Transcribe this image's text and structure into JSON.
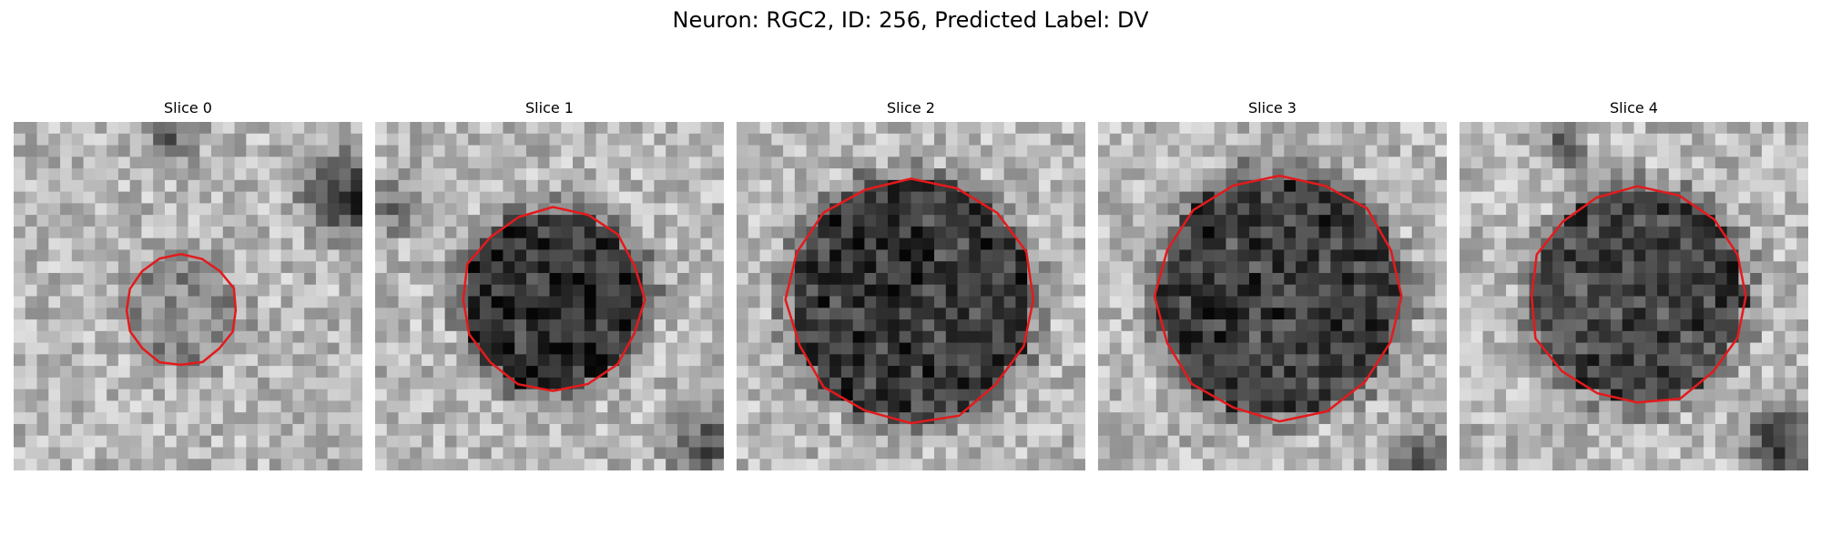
{
  "figure": {
    "title": "Neuron: RGC2, ID: 256, Predicted Label: DV",
    "contour_color": "#e41a1c",
    "colormap": "gray",
    "panels": [
      {
        "title": "Slice 0"
      },
      {
        "title": "Slice 1"
      },
      {
        "title": "Slice 2"
      },
      {
        "title": "Slice 3"
      },
      {
        "title": "Slice 4"
      }
    ]
  }
}
